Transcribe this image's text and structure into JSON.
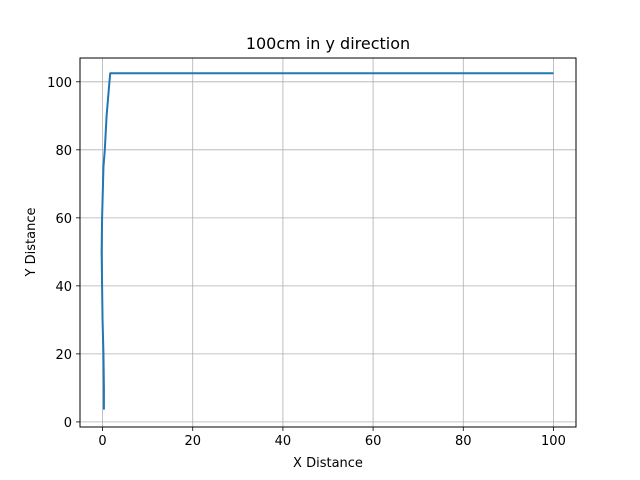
{
  "chart_data": {
    "type": "line",
    "title": "100cm in y direction",
    "xlabel": "X Distance",
    "ylabel": "Y Distance",
    "xlim": [
      -5,
      105
    ],
    "ylim": [
      -1.5,
      107
    ],
    "xticks": [
      0,
      20,
      40,
      60,
      80,
      100
    ],
    "yticks": [
      0,
      20,
      40,
      60,
      80,
      100
    ],
    "grid": true,
    "line_color": "#1f77b4",
    "series": [
      {
        "x": [
          0.3,
          0.3,
          0.2,
          0.0,
          -0.1,
          -0.2,
          -0.1,
          0.0,
          0.2,
          0.5,
          0.9,
          1.4,
          1.7,
          100.0
        ],
        "y": [
          3.6,
          10,
          20,
          30,
          40,
          50,
          60,
          65,
          75,
          80,
          90,
          98,
          102.5,
          102.5
        ]
      }
    ]
  }
}
